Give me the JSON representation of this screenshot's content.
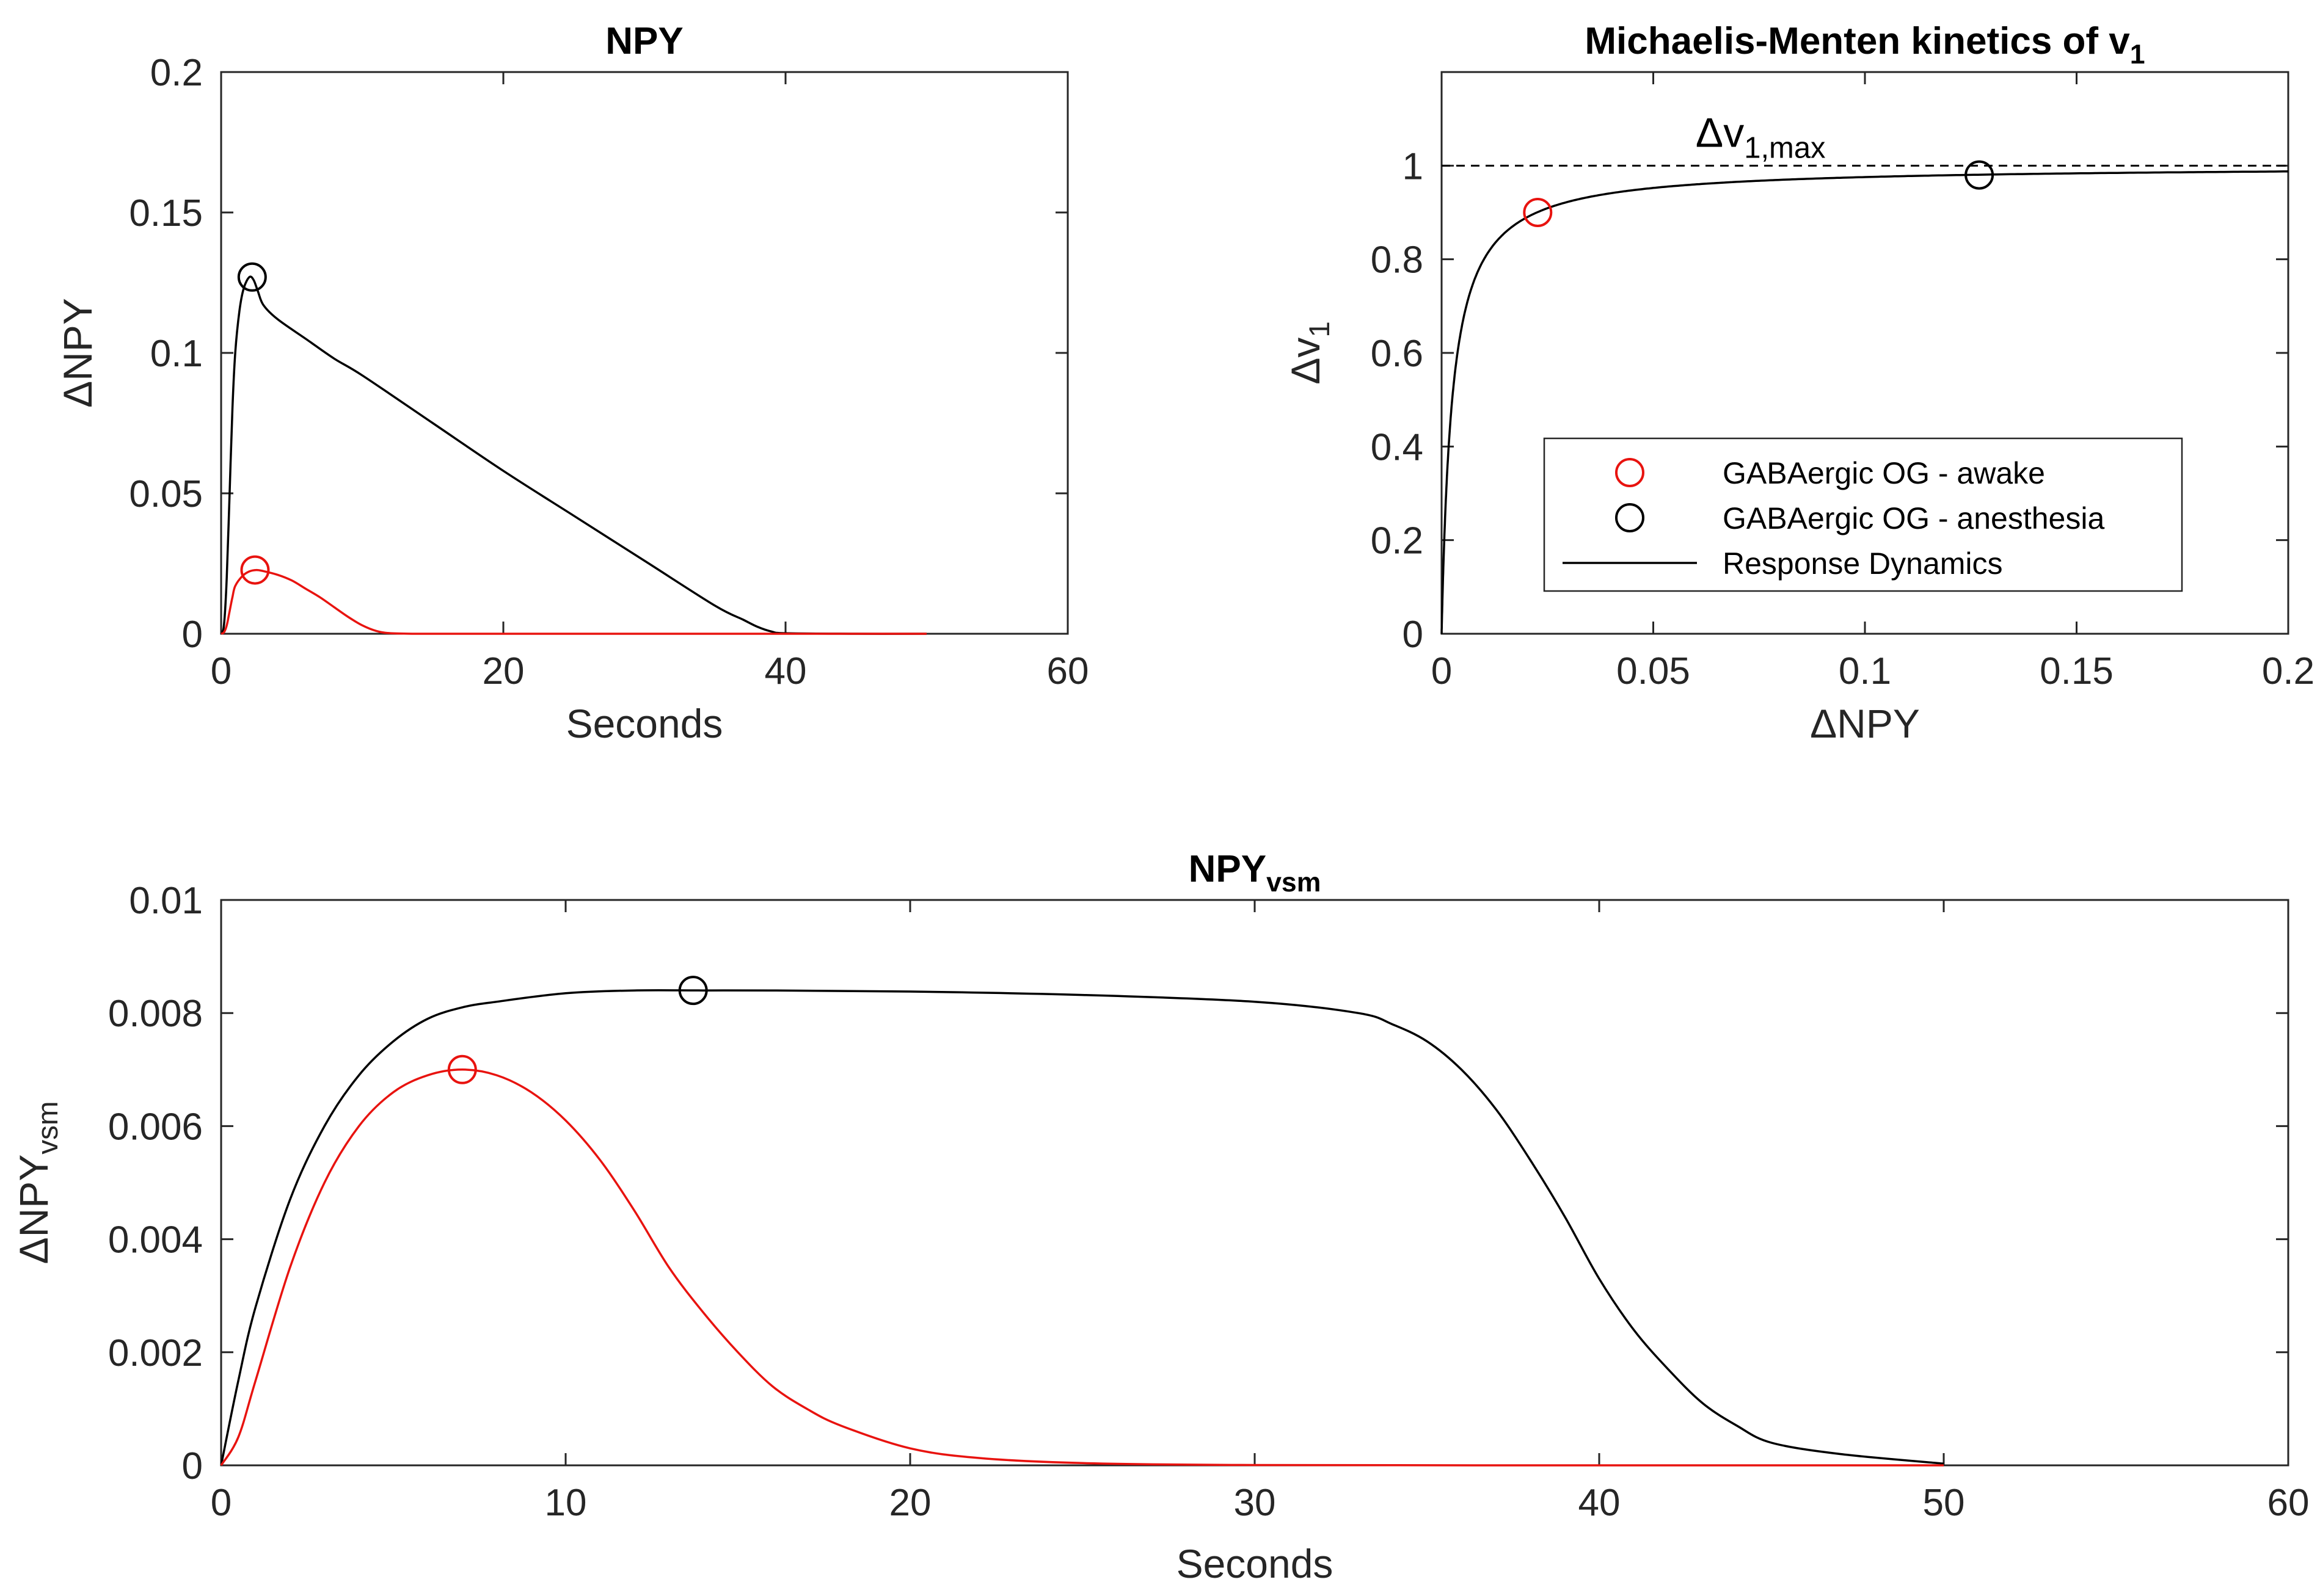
{
  "figure": {
    "background": "#ffffff",
    "axis_color": "#262626"
  },
  "chart_data": [
    {
      "id": "npy",
      "type": "line",
      "title": "NPY",
      "xlabel": "Seconds",
      "ylabel": "ΔNPY",
      "xlim": [
        0,
        60
      ],
      "ylim": [
        0,
        0.2
      ],
      "xticks": [
        0,
        20,
        40,
        60
      ],
      "yticks": [
        0,
        0.05,
        0.1,
        0.15,
        0.2
      ],
      "ytick_labels": [
        "0",
        "0.05",
        "0.1",
        "0.15",
        "0.2"
      ],
      "grid": false,
      "series": [
        {
          "color": "#000000",
          "x": [
            0,
            0.2,
            0.4,
            0.6,
            0.8,
            1.0,
            1.3,
            1.6,
            2.0,
            2.3,
            2.6,
            3.0,
            4,
            6,
            8,
            10,
            15,
            20,
            25,
            30,
            35,
            37,
            38,
            39,
            40,
            45,
            50
          ],
          "y": [
            0,
            0.003,
            0.02,
            0.05,
            0.08,
            0.1,
            0.115,
            0.123,
            0.127,
            0.126,
            0.122,
            0.117,
            0.112,
            0.105,
            0.098,
            0.092,
            0.075,
            0.058,
            0.042,
            0.026,
            0.01,
            0.005,
            0.0025,
            0.0008,
            0.0002,
            0,
            0
          ]
        },
        {
          "color": "#e8130f",
          "x": [
            0,
            0.2,
            0.4,
            0.6,
            0.8,
            1.0,
            1.5,
            2.0,
            2.5,
            3.0,
            4,
            5,
            6,
            7,
            8,
            9,
            10,
            11,
            12,
            14,
            20,
            30,
            40,
            50
          ],
          "y": [
            0,
            0.0005,
            0.003,
            0.008,
            0.013,
            0.017,
            0.0205,
            0.0222,
            0.0227,
            0.0223,
            0.021,
            0.019,
            0.016,
            0.013,
            0.0095,
            0.006,
            0.003,
            0.001,
            0.0002,
            0,
            0,
            0,
            0,
            0
          ]
        }
      ],
      "markers": [
        {
          "color": "#000000",
          "x": 2.2,
          "y": 0.127
        },
        {
          "color": "#e8130f",
          "x": 2.4,
          "y": 0.0227
        }
      ]
    },
    {
      "id": "mm",
      "type": "line",
      "title": "Michaelis-Menten kinetics of v",
      "title_sub": "1",
      "xlabel": "ΔNPY",
      "ylabel": "Δv",
      "ylabel_sub": "1",
      "xlim": [
        0,
        0.2
      ],
      "ylim": [
        0,
        1.2
      ],
      "xticks": [
        0,
        0.05,
        0.1,
        0.15,
        0.2
      ],
      "xtick_labels": [
        "0",
        "0.05",
        "0.1",
        "0.15",
        "0.2"
      ],
      "yticks": [
        0,
        0.2,
        0.4,
        0.6,
        0.8,
        1
      ],
      "ytick_labels": [
        "0",
        "0.2",
        "0.4",
        "0.6",
        "0.8",
        "1"
      ],
      "grid": false,
      "vmax": 1,
      "km": 0.0025,
      "reference_line": {
        "y": 1,
        "style": "dashed",
        "color": "#000000"
      },
      "annotation": {
        "text": "Δv",
        "sub": "1,max",
        "x": 0.06,
        "y": 1.04
      },
      "markers": [
        {
          "color": "#e8130f",
          "x": 0.0227,
          "y": 0.9
        },
        {
          "color": "#000000",
          "x": 0.127,
          "y": 0.98
        }
      ],
      "legend": {
        "placement": "lower-right",
        "entries": [
          {
            "label": "GABAergic OG - awake",
            "kind": "marker",
            "color": "#e8130f"
          },
          {
            "label": "GABAergic OG - anesthesia",
            "kind": "marker",
            "color": "#000000"
          },
          {
            "label": "Response Dynamics",
            "kind": "line",
            "color": "#000000"
          }
        ]
      }
    },
    {
      "id": "npyvsm",
      "type": "line",
      "title": "NPY",
      "title_sub": "vsm",
      "xlabel": "Seconds",
      "ylabel": "ΔNPY",
      "ylabel_sub": "vsm",
      "xlim": [
        0,
        60
      ],
      "ylim": [
        0,
        0.01
      ],
      "xticks": [
        0,
        10,
        20,
        30,
        40,
        50,
        60
      ],
      "yticks": [
        0,
        0.002,
        0.004,
        0.006,
        0.008,
        0.01
      ],
      "ytick_labels": [
        "0",
        "0.002",
        "0.004",
        "0.006",
        "0.008",
        "0.01"
      ],
      "grid": false,
      "series": [
        {
          "color": "#000000",
          "x": [
            0,
            0.5,
            1,
            2,
            3,
            4,
            5,
            6,
            7,
            8,
            10,
            12,
            14,
            16,
            20,
            25,
            30,
            33,
            34,
            35,
            36,
            37,
            38,
            39,
            40,
            41,
            42,
            43,
            44,
            45,
            47,
            50
          ],
          "y": [
            0,
            0.0015,
            0.0028,
            0.0047,
            0.006,
            0.0069,
            0.0075,
            0.0079,
            0.0081,
            0.0082,
            0.00835,
            0.0084,
            0.0084,
            0.0084,
            0.00838,
            0.00832,
            0.0082,
            0.008,
            0.0078,
            0.0075,
            0.007,
            0.0063,
            0.0054,
            0.0044,
            0.0033,
            0.0024,
            0.0017,
            0.0011,
            0.0007,
            0.0004,
            0.0002,
            3e-05
          ]
        },
        {
          "color": "#e8130f",
          "x": [
            0,
            0.5,
            1,
            2,
            3,
            4,
            5,
            6,
            7,
            8,
            9,
            10,
            11,
            12,
            13,
            14,
            15,
            16,
            17,
            18,
            20,
            22,
            25,
            30,
            40,
            50
          ],
          "y": [
            0,
            0.0005,
            0.0015,
            0.0035,
            0.005,
            0.006,
            0.0066,
            0.0069,
            0.007,
            0.0069,
            0.0066,
            0.0061,
            0.0054,
            0.0045,
            0.0035,
            0.0027,
            0.002,
            0.0014,
            0.001,
            0.0007,
            0.0003,
            0.00013,
            4e-05,
            5e-06,
            0,
            0
          ]
        }
      ],
      "markers": [
        {
          "color": "#e8130f",
          "x": 7,
          "y": 0.007
        },
        {
          "color": "#000000",
          "x": 13.7,
          "y": 0.0084
        }
      ]
    }
  ]
}
